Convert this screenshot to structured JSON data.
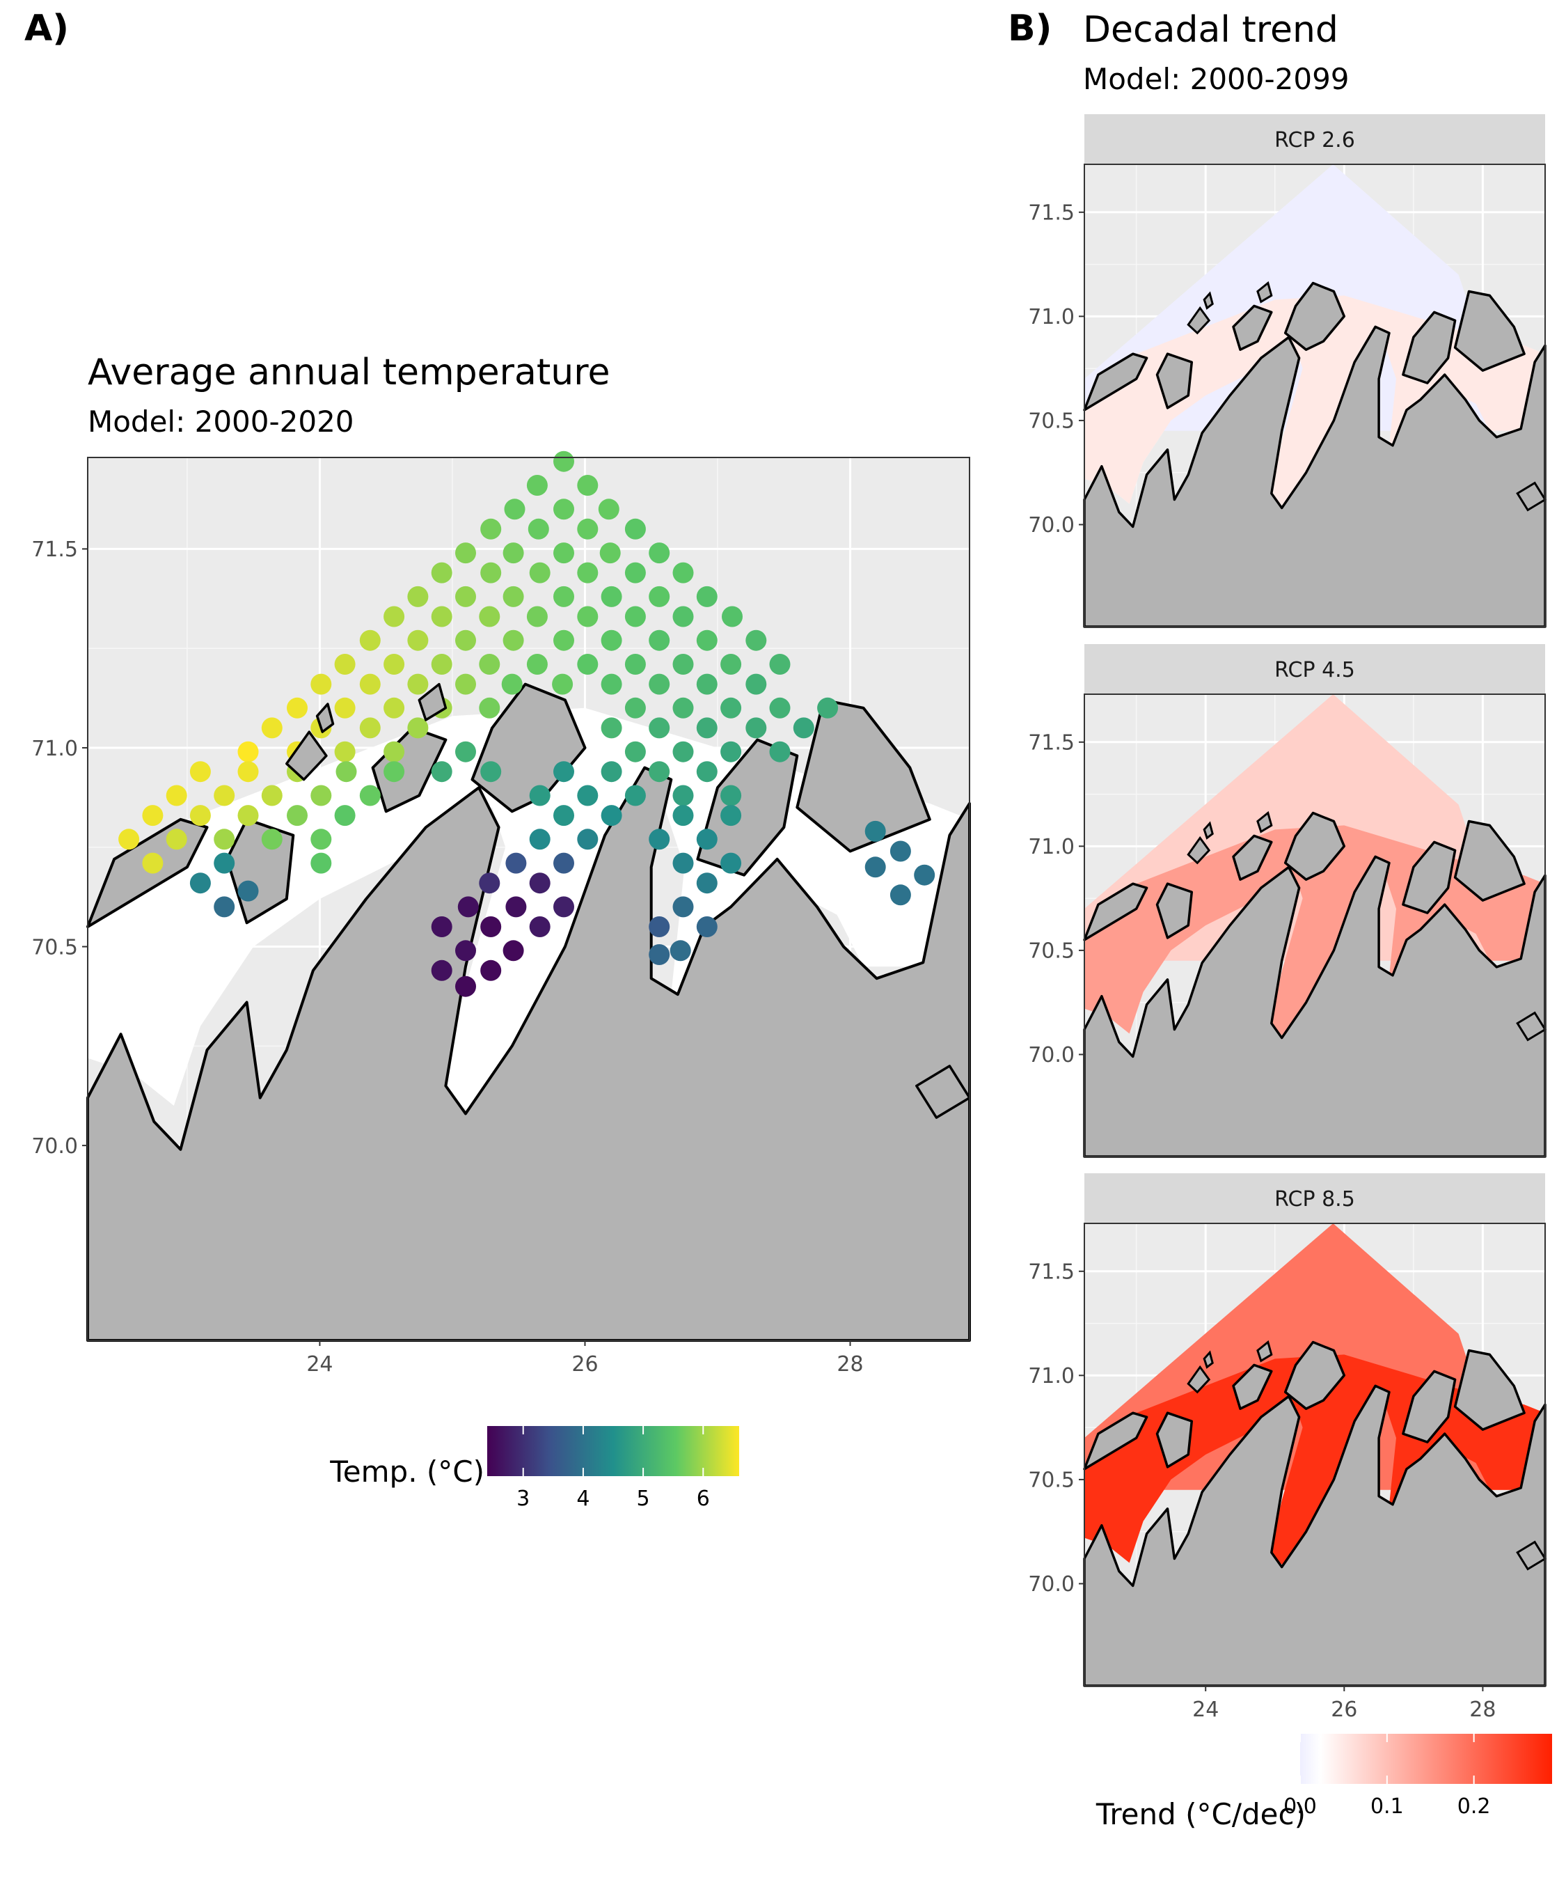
{
  "panel_a": {
    "tag": "A)",
    "title": "Average annual temperature",
    "subtitle": "Model: 2000-2020",
    "legend": {
      "title": "Temp. (°C)",
      "ticks": [
        "3",
        "4",
        "5",
        "6"
      ],
      "colors": [
        "#440154",
        "#3b528b",
        "#21908c",
        "#5dc963",
        "#fde725"
      ]
    }
  },
  "panel_b": {
    "tag": "B)",
    "title": "Decadal trend",
    "subtitle": "Model: 2000-2099",
    "facets": [
      "RCP 2.6",
      "RCP 4.5",
      "RCP 8.5"
    ],
    "legend": {
      "title": "Trend (°C/dec)",
      "ticks": [
        "0.0",
        "0.1",
        "0.2"
      ],
      "colors": [
        "#eeeeff",
        "#ffffff",
        "#ff2000"
      ]
    }
  },
  "colors": {
    "panel_bg": "#ebebeb",
    "land": "#b3b3b3",
    "strip": "#d9d9d9",
    "grid": "#ffffff"
  },
  "chart_data": [
    {
      "type": "scatter",
      "title": "Average annual temperature",
      "subtitle": "Model: 2000-2020",
      "xlabel": "",
      "ylabel": "",
      "x_ticks": [
        "24",
        "26",
        "28"
      ],
      "y_ticks": [
        "70.0",
        "70.5",
        "71.0",
        "71.5"
      ],
      "xlim": [
        22.25,
        28.9
      ],
      "ylim": [
        69.51,
        71.73
      ],
      "grid": true,
      "legend_position": "bottom",
      "color_scale": "viridis",
      "color_range": [
        2.4,
        6.6
      ],
      "points": [
        {
          "x": 25.84,
          "y": 71.72,
          "t": 5.6
        },
        {
          "x": 25.64,
          "y": 71.66,
          "t": 5.6
        },
        {
          "x": 26.02,
          "y": 71.66,
          "t": 5.6
        },
        {
          "x": 25.47,
          "y": 71.6,
          "t": 5.6
        },
        {
          "x": 25.84,
          "y": 71.6,
          "t": 5.6
        },
        {
          "x": 26.18,
          "y": 71.6,
          "t": 5.6
        },
        {
          "x": 25.29,
          "y": 71.55,
          "t": 5.7
        },
        {
          "x": 25.65,
          "y": 71.55,
          "t": 5.6
        },
        {
          "x": 26.02,
          "y": 71.55,
          "t": 5.6
        },
        {
          "x": 26.38,
          "y": 71.55,
          "t": 5.5
        },
        {
          "x": 25.1,
          "y": 71.49,
          "t": 5.8
        },
        {
          "x": 25.46,
          "y": 71.49,
          "t": 5.7
        },
        {
          "x": 25.84,
          "y": 71.49,
          "t": 5.6
        },
        {
          "x": 26.19,
          "y": 71.49,
          "t": 5.6
        },
        {
          "x": 26.56,
          "y": 71.49,
          "t": 5.5
        },
        {
          "x": 24.92,
          "y": 71.44,
          "t": 5.9
        },
        {
          "x": 25.29,
          "y": 71.44,
          "t": 5.8
        },
        {
          "x": 25.66,
          "y": 71.44,
          "t": 5.7
        },
        {
          "x": 26.02,
          "y": 71.44,
          "t": 5.6
        },
        {
          "x": 26.38,
          "y": 71.44,
          "t": 5.5
        },
        {
          "x": 26.74,
          "y": 71.44,
          "t": 5.5
        },
        {
          "x": 24.74,
          "y": 71.38,
          "t": 6.0
        },
        {
          "x": 25.1,
          "y": 71.38,
          "t": 5.9
        },
        {
          "x": 25.46,
          "y": 71.38,
          "t": 5.8
        },
        {
          "x": 25.84,
          "y": 71.38,
          "t": 5.6
        },
        {
          "x": 26.2,
          "y": 71.38,
          "t": 5.5
        },
        {
          "x": 26.56,
          "y": 71.38,
          "t": 5.5
        },
        {
          "x": 26.92,
          "y": 71.38,
          "t": 5.4
        },
        {
          "x": 24.56,
          "y": 71.33,
          "t": 6.1
        },
        {
          "x": 24.92,
          "y": 71.33,
          "t": 6.0
        },
        {
          "x": 25.28,
          "y": 71.33,
          "t": 5.9
        },
        {
          "x": 25.64,
          "y": 71.33,
          "t": 5.7
        },
        {
          "x": 26.02,
          "y": 71.33,
          "t": 5.6
        },
        {
          "x": 26.38,
          "y": 71.33,
          "t": 5.5
        },
        {
          "x": 26.74,
          "y": 71.33,
          "t": 5.4
        },
        {
          "x": 27.11,
          "y": 71.33,
          "t": 5.4
        },
        {
          "x": 24.38,
          "y": 71.27,
          "t": 6.2
        },
        {
          "x": 24.74,
          "y": 71.27,
          "t": 6.1
        },
        {
          "x": 25.1,
          "y": 71.27,
          "t": 5.9
        },
        {
          "x": 25.46,
          "y": 71.27,
          "t": 5.8
        },
        {
          "x": 25.84,
          "y": 71.27,
          "t": 5.6
        },
        {
          "x": 26.2,
          "y": 71.27,
          "t": 5.5
        },
        {
          "x": 26.56,
          "y": 71.27,
          "t": 5.4
        },
        {
          "x": 26.92,
          "y": 71.27,
          "t": 5.4
        },
        {
          "x": 27.29,
          "y": 71.27,
          "t": 5.3
        },
        {
          "x": 24.19,
          "y": 71.21,
          "t": 6.3
        },
        {
          "x": 24.56,
          "y": 71.21,
          "t": 6.2
        },
        {
          "x": 24.92,
          "y": 71.21,
          "t": 6.0
        },
        {
          "x": 25.28,
          "y": 71.21,
          "t": 5.8
        },
        {
          "x": 25.64,
          "y": 71.21,
          "t": 5.6
        },
        {
          "x": 26.02,
          "y": 71.21,
          "t": 5.5
        },
        {
          "x": 26.38,
          "y": 71.21,
          "t": 5.4
        },
        {
          "x": 26.74,
          "y": 71.21,
          "t": 5.3
        },
        {
          "x": 27.1,
          "y": 71.21,
          "t": 5.3
        },
        {
          "x": 27.47,
          "y": 71.21,
          "t": 5.2
        },
        {
          "x": 24.01,
          "y": 71.16,
          "t": 6.4
        },
        {
          "x": 24.38,
          "y": 71.16,
          "t": 6.3
        },
        {
          "x": 24.74,
          "y": 71.16,
          "t": 6.1
        },
        {
          "x": 25.1,
          "y": 71.16,
          "t": 5.9
        },
        {
          "x": 25.45,
          "y": 71.16,
          "t": 5.6
        },
        {
          "x": 25.83,
          "y": 71.16,
          "t": 5.6
        },
        {
          "x": 26.2,
          "y": 71.16,
          "t": 5.4
        },
        {
          "x": 26.56,
          "y": 71.16,
          "t": 5.3
        },
        {
          "x": 26.92,
          "y": 71.16,
          "t": 5.2
        },
        {
          "x": 27.29,
          "y": 71.16,
          "t": 5.1
        },
        {
          "x": 23.83,
          "y": 71.1,
          "t": 6.5
        },
        {
          "x": 24.19,
          "y": 71.1,
          "t": 6.4
        },
        {
          "x": 24.56,
          "y": 71.1,
          "t": 6.2
        },
        {
          "x": 24.92,
          "y": 71.1,
          "t": 6.0
        },
        {
          "x": 25.28,
          "y": 71.1,
          "t": 5.7
        },
        {
          "x": 26.38,
          "y": 71.1,
          "t": 5.3
        },
        {
          "x": 26.74,
          "y": 71.1,
          "t": 5.2
        },
        {
          "x": 27.1,
          "y": 71.1,
          "t": 5.1
        },
        {
          "x": 27.47,
          "y": 71.1,
          "t": 5.1
        },
        {
          "x": 27.83,
          "y": 71.1,
          "t": 5.0
        },
        {
          "x": 23.64,
          "y": 71.05,
          "t": 6.5
        },
        {
          "x": 24.01,
          "y": 71.05,
          "t": 6.4
        },
        {
          "x": 24.38,
          "y": 71.05,
          "t": 6.2
        },
        {
          "x": 24.74,
          "y": 71.05,
          "t": 6.0
        },
        {
          "x": 26.2,
          "y": 71.05,
          "t": 5.2
        },
        {
          "x": 26.56,
          "y": 71.05,
          "t": 5.1
        },
        {
          "x": 26.92,
          "y": 71.05,
          "t": 5.0
        },
        {
          "x": 27.29,
          "y": 71.05,
          "t": 5.0
        },
        {
          "x": 27.65,
          "y": 71.05,
          "t": 4.9
        },
        {
          "x": 23.46,
          "y": 70.99,
          "t": 6.6
        },
        {
          "x": 23.83,
          "y": 70.99,
          "t": 6.5
        },
        {
          "x": 24.19,
          "y": 70.99,
          "t": 6.2
        },
        {
          "x": 24.56,
          "y": 70.99,
          "t": 6.0
        },
        {
          "x": 25.1,
          "y": 70.99,
          "t": 5.1
        },
        {
          "x": 26.38,
          "y": 70.99,
          "t": 5.1
        },
        {
          "x": 26.74,
          "y": 70.99,
          "t": 5.0
        },
        {
          "x": 27.1,
          "y": 70.99,
          "t": 4.9
        },
        {
          "x": 27.47,
          "y": 70.99,
          "t": 4.9
        },
        {
          "x": 23.1,
          "y": 70.94,
          "t": 6.5
        },
        {
          "x": 23.46,
          "y": 70.94,
          "t": 6.5
        },
        {
          "x": 23.83,
          "y": 70.94,
          "t": 6.1
        },
        {
          "x": 24.2,
          "y": 70.94,
          "t": 5.8
        },
        {
          "x": 24.56,
          "y": 70.94,
          "t": 5.6
        },
        {
          "x": 24.92,
          "y": 70.94,
          "t": 5.0
        },
        {
          "x": 25.29,
          "y": 70.94,
          "t": 4.9
        },
        {
          "x": 25.84,
          "y": 70.94,
          "t": 4.6
        },
        {
          "x": 26.2,
          "y": 70.94,
          "t": 4.8
        },
        {
          "x": 26.56,
          "y": 70.94,
          "t": 5.0
        },
        {
          "x": 26.92,
          "y": 70.94,
          "t": 4.9
        },
        {
          "x": 22.92,
          "y": 70.88,
          "t": 6.5
        },
        {
          "x": 23.28,
          "y": 70.88,
          "t": 6.4
        },
        {
          "x": 23.64,
          "y": 70.88,
          "t": 6.2
        },
        {
          "x": 24.01,
          "y": 70.88,
          "t": 5.9
        },
        {
          "x": 24.38,
          "y": 70.88,
          "t": 5.6
        },
        {
          "x": 25.66,
          "y": 70.88,
          "t": 4.7
        },
        {
          "x": 26.02,
          "y": 70.88,
          "t": 4.6
        },
        {
          "x": 26.38,
          "y": 70.88,
          "t": 4.7
        },
        {
          "x": 26.74,
          "y": 70.88,
          "t": 4.8
        },
        {
          "x": 27.1,
          "y": 70.88,
          "t": 4.8
        },
        {
          "x": 22.74,
          "y": 70.83,
          "t": 6.5
        },
        {
          "x": 23.1,
          "y": 70.83,
          "t": 6.4
        },
        {
          "x": 23.46,
          "y": 70.83,
          "t": 6.2
        },
        {
          "x": 23.83,
          "y": 70.83,
          "t": 5.8
        },
        {
          "x": 24.19,
          "y": 70.83,
          "t": 5.5
        },
        {
          "x": 25.84,
          "y": 70.83,
          "t": 4.6
        },
        {
          "x": 26.2,
          "y": 70.83,
          "t": 4.5
        },
        {
          "x": 26.74,
          "y": 70.83,
          "t": 4.6
        },
        {
          "x": 27.1,
          "y": 70.83,
          "t": 4.6
        },
        {
          "x": 22.56,
          "y": 70.77,
          "t": 6.5
        },
        {
          "x": 22.92,
          "y": 70.77,
          "t": 6.3
        },
        {
          "x": 23.28,
          "y": 70.77,
          "t": 6.0
        },
        {
          "x": 23.64,
          "y": 70.77,
          "t": 5.7
        },
        {
          "x": 24.01,
          "y": 70.77,
          "t": 5.6
        },
        {
          "x": 25.66,
          "y": 70.77,
          "t": 4.4
        },
        {
          "x": 26.02,
          "y": 70.77,
          "t": 4.3
        },
        {
          "x": 26.56,
          "y": 70.77,
          "t": 4.4
        },
        {
          "x": 26.92,
          "y": 70.77,
          "t": 4.4
        },
        {
          "x": 28.19,
          "y": 70.79,
          "t": 4.2
        },
        {
          "x": 22.74,
          "y": 70.71,
          "t": 6.4
        },
        {
          "x": 23.28,
          "y": 70.71,
          "t": 4.4
        },
        {
          "x": 24.01,
          "y": 70.71,
          "t": 5.5
        },
        {
          "x": 25.48,
          "y": 70.71,
          "t": 3.5
        },
        {
          "x": 25.84,
          "y": 70.71,
          "t": 3.6
        },
        {
          "x": 26.74,
          "y": 70.71,
          "t": 4.3
        },
        {
          "x": 27.1,
          "y": 70.71,
          "t": 4.4
        },
        {
          "x": 28.38,
          "y": 70.74,
          "t": 4.0
        },
        {
          "x": 28.19,
          "y": 70.7,
          "t": 4.0
        },
        {
          "x": 28.56,
          "y": 70.68,
          "t": 4.0
        },
        {
          "x": 23.1,
          "y": 70.66,
          "t": 4.3
        },
        {
          "x": 23.46,
          "y": 70.64,
          "t": 4.0
        },
        {
          "x": 25.28,
          "y": 70.66,
          "t": 3.0
        },
        {
          "x": 25.66,
          "y": 70.66,
          "t": 2.8
        },
        {
          "x": 26.92,
          "y": 70.66,
          "t": 4.2
        },
        {
          "x": 28.38,
          "y": 70.63,
          "t": 4.0
        },
        {
          "x": 23.28,
          "y": 70.6,
          "t": 3.9
        },
        {
          "x": 25.12,
          "y": 70.6,
          "t": 2.6
        },
        {
          "x": 25.48,
          "y": 70.6,
          "t": 2.6
        },
        {
          "x": 25.84,
          "y": 70.6,
          "t": 2.8
        },
        {
          "x": 26.74,
          "y": 70.6,
          "t": 3.9
        },
        {
          "x": 24.92,
          "y": 70.55,
          "t": 2.6
        },
        {
          "x": 25.29,
          "y": 70.55,
          "t": 2.5
        },
        {
          "x": 25.66,
          "y": 70.55,
          "t": 2.7
        },
        {
          "x": 26.56,
          "y": 70.55,
          "t": 3.6
        },
        {
          "x": 26.92,
          "y": 70.55,
          "t": 3.8
        },
        {
          "x": 25.1,
          "y": 70.49,
          "t": 2.6
        },
        {
          "x": 25.46,
          "y": 70.49,
          "t": 2.5
        },
        {
          "x": 26.72,
          "y": 70.49,
          "t": 3.9
        },
        {
          "x": 24.92,
          "y": 70.44,
          "t": 2.6
        },
        {
          "x": 25.29,
          "y": 70.44,
          "t": 2.5
        },
        {
          "x": 26.56,
          "y": 70.48,
          "t": 3.8
        },
        {
          "x": 25.1,
          "y": 70.4,
          "t": 2.5
        }
      ]
    },
    {
      "type": "heatmap",
      "title": "Decadal trend",
      "subtitle": "Model: 2000-2099",
      "x_ticks": [
        "24",
        "26",
        "28"
      ],
      "y_ticks": [
        "70.0",
        "70.5",
        "71.0",
        "71.5"
      ],
      "xlim": [
        22.25,
        28.9
      ],
      "ylim": [
        69.51,
        71.73
      ],
      "grid": true,
      "legend_position": "bottom",
      "color_range": [
        0.0,
        0.29
      ],
      "facets": [
        {
          "name": "RCP 2.6",
          "trend_open_sea": 0.0,
          "trend_fjords": 0.05
        },
        {
          "name": "RCP 4.5",
          "trend_open_sea": 0.08,
          "trend_fjords": 0.14
        },
        {
          "name": "RCP 8.5",
          "trend_open_sea": 0.19,
          "trend_fjords": 0.27
        }
      ]
    }
  ]
}
